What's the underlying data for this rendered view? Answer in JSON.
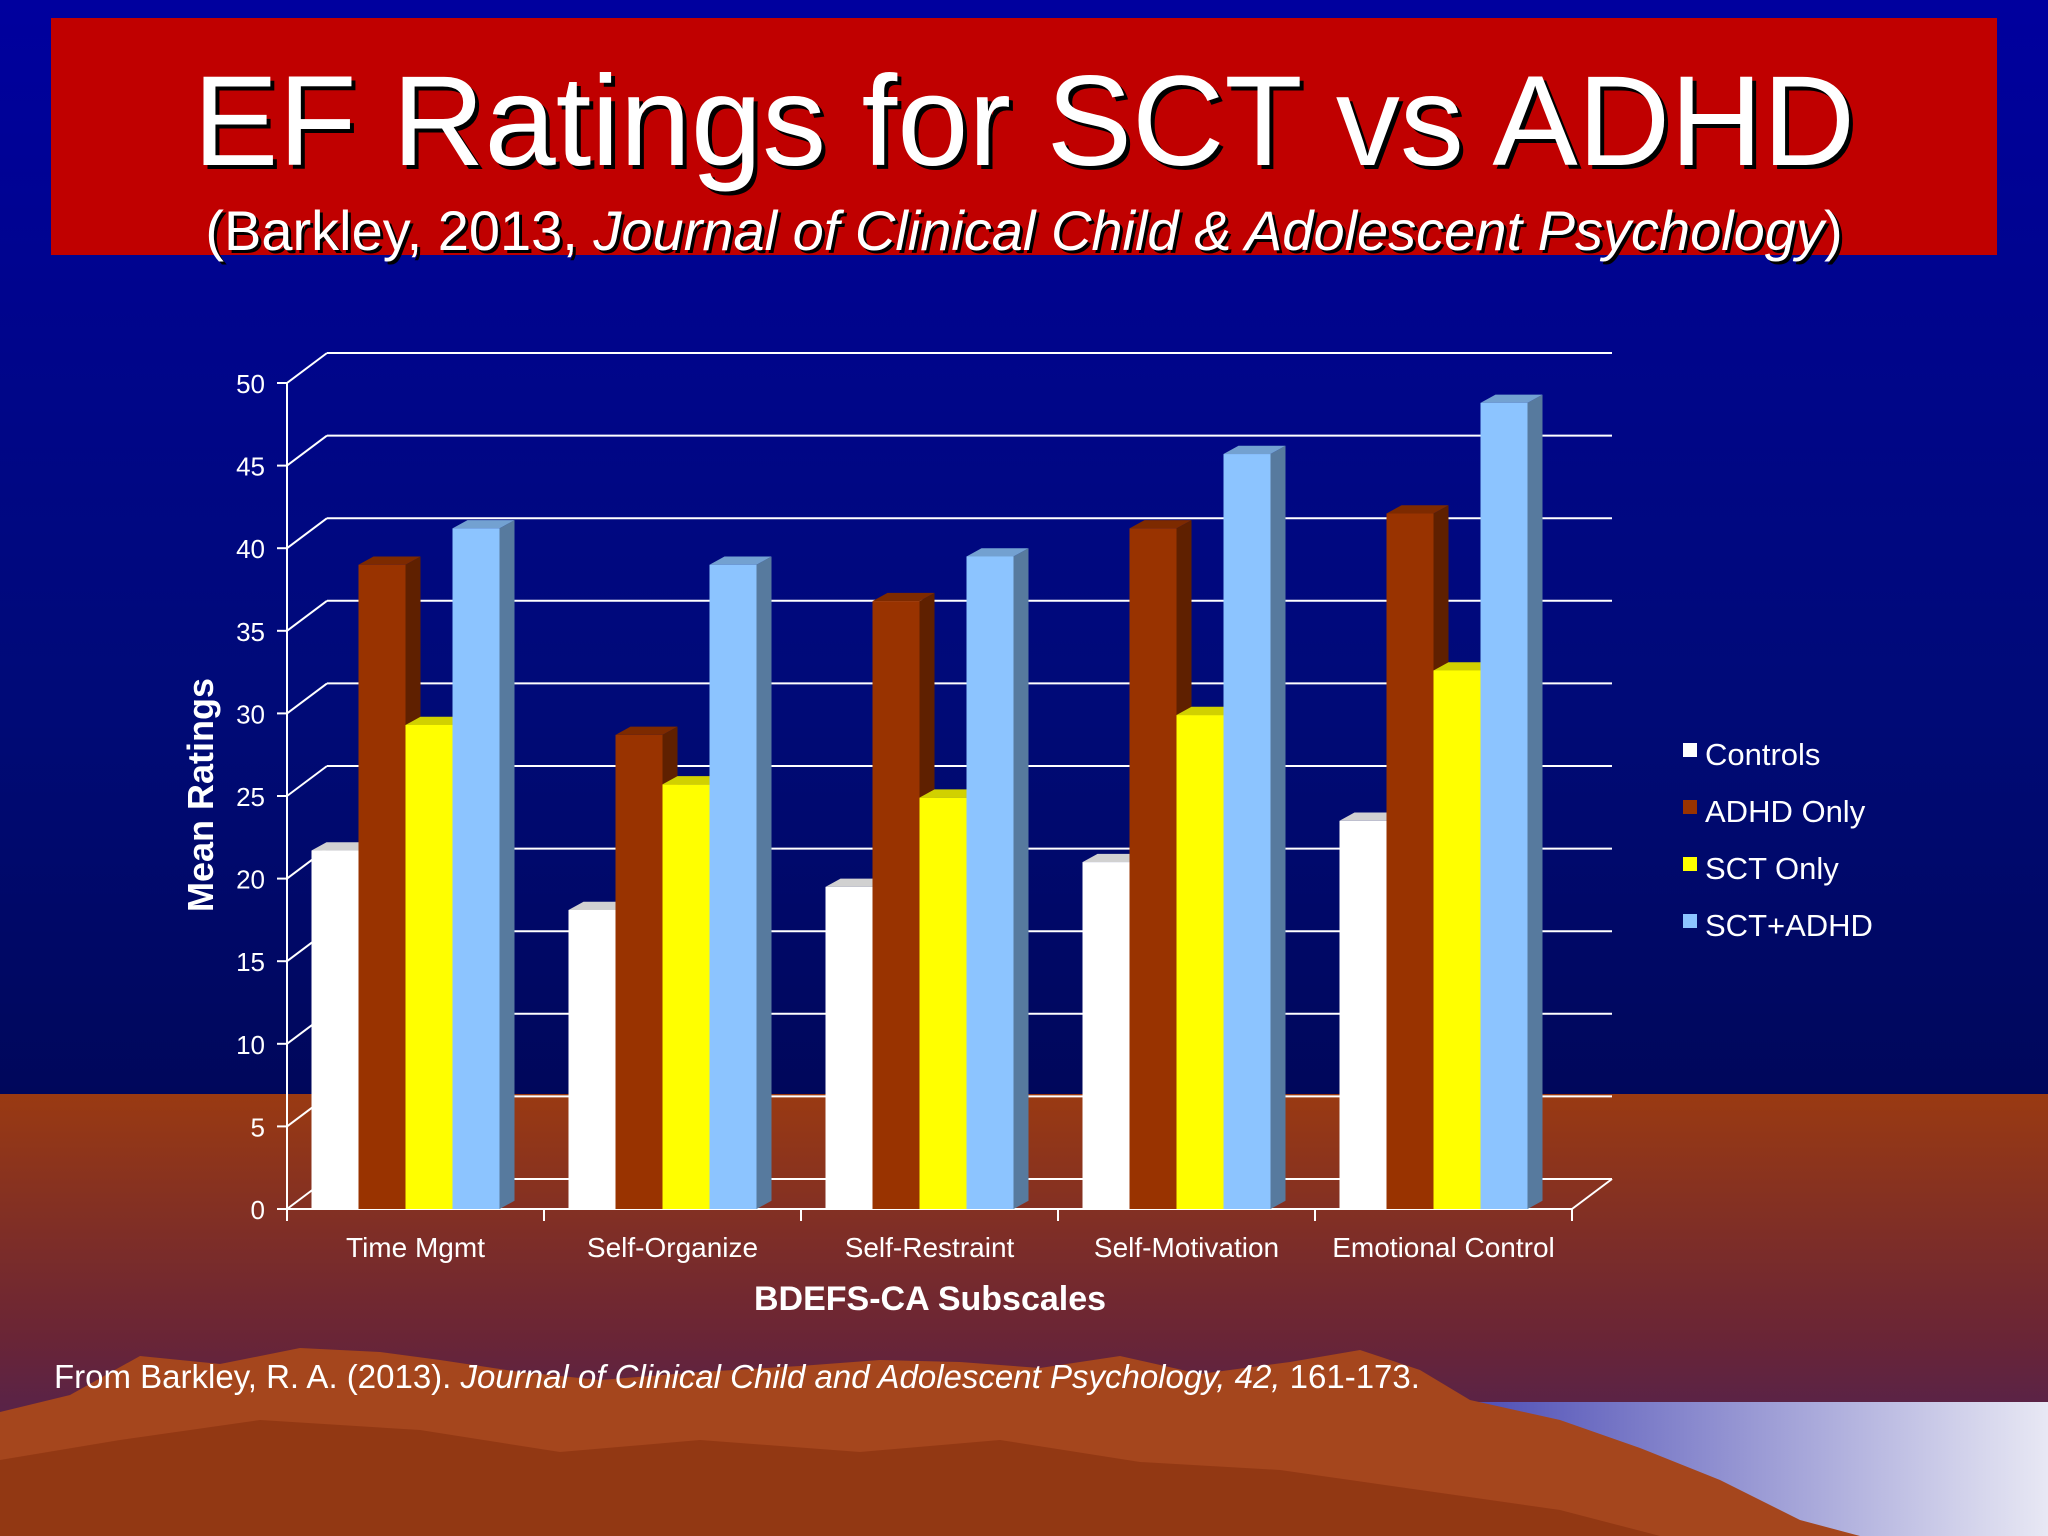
{
  "slide": {
    "title": "EF Ratings for SCT vs ADHD",
    "subtitle_pre": "(Barkley, 2013, ",
    "subtitle_journal": "Journal of Clinical Child & Adolescent Psychology",
    "subtitle_post": ")",
    "footnote_pre": "From Barkley, R. A. (2013). ",
    "footnote_journal": "Journal of Clinical Child and Adolescent Psychology, 42,",
    "footnote_post": " 161-173."
  },
  "colors": {
    "title_bar": "#c00000",
    "background_top": "#00009e",
    "ground": "#9a3a12"
  },
  "chart_data": {
    "type": "bar",
    "style": "3d-clustered",
    "title": "",
    "xlabel": "BDEFS-CA Subscales",
    "ylabel": "Mean Ratings",
    "ylim": [
      0,
      50
    ],
    "yticks": [
      0,
      5,
      10,
      15,
      20,
      25,
      30,
      35,
      40,
      45,
      50
    ],
    "grid": true,
    "legend_position": "right",
    "categories": [
      "Time Mgmt",
      "Self-Organize",
      "Self-Restraint",
      "Self-Motivation",
      "Emotional Control"
    ],
    "series": [
      {
        "name": "Controls",
        "color": "#ffffff",
        "values": [
          21.7,
          18.1,
          19.5,
          21.0,
          23.5
        ]
      },
      {
        "name": "ADHD Only",
        "color": "#993300",
        "values": [
          39.0,
          28.7,
          36.8,
          41.2,
          42.1
        ]
      },
      {
        "name": "SCT Only",
        "color": "#ffff00",
        "values": [
          29.3,
          25.7,
          24.9,
          29.9,
          32.6
        ]
      },
      {
        "name": "SCT+ADHD",
        "color": "#8cc4ff",
        "values": [
          41.2,
          39.0,
          39.5,
          45.7,
          48.8
        ]
      }
    ]
  }
}
